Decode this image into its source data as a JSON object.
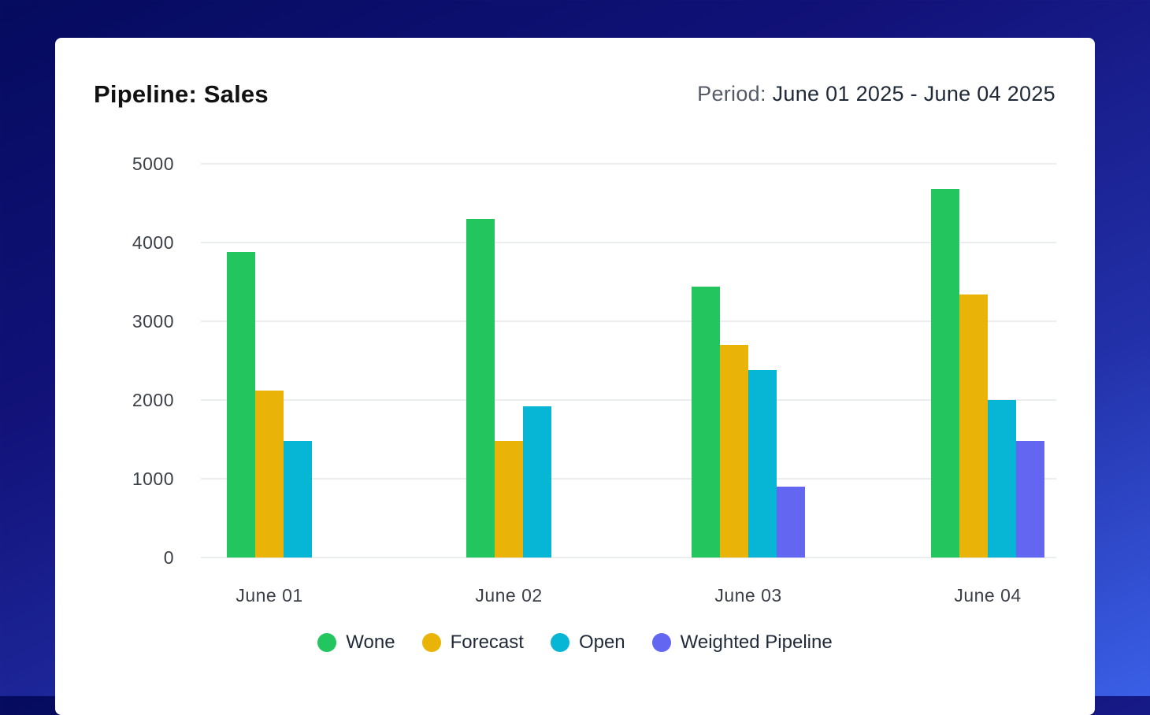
{
  "header": {
    "title": "Pipeline: Sales",
    "period_label": "Period:",
    "period_value": "June 01 2025 - June 04 2025"
  },
  "chart_data": {
    "type": "bar",
    "title": "Pipeline: Sales",
    "categories": [
      "June 01",
      "June 02",
      "June 03",
      "June 04"
    ],
    "series": [
      {
        "name": "Wone",
        "color": "#22c55e",
        "values": [
          3880,
          4300,
          3440,
          4680
        ]
      },
      {
        "name": "Forecast",
        "color": "#eab308",
        "values": [
          2120,
          1480,
          2700,
          3340
        ]
      },
      {
        "name": "Open",
        "color": "#06b6d4",
        "values": [
          1480,
          1920,
          2380,
          2000
        ]
      },
      {
        "name": "Weighted Pipeline",
        "color": "#6366f1",
        "values": [
          null,
          null,
          900,
          1480
        ]
      }
    ],
    "yticks": [
      0,
      1000,
      2000,
      3000,
      4000,
      5000
    ],
    "ylim": [
      0,
      5000
    ],
    "grid": true,
    "legend_position": "bottom-center"
  }
}
